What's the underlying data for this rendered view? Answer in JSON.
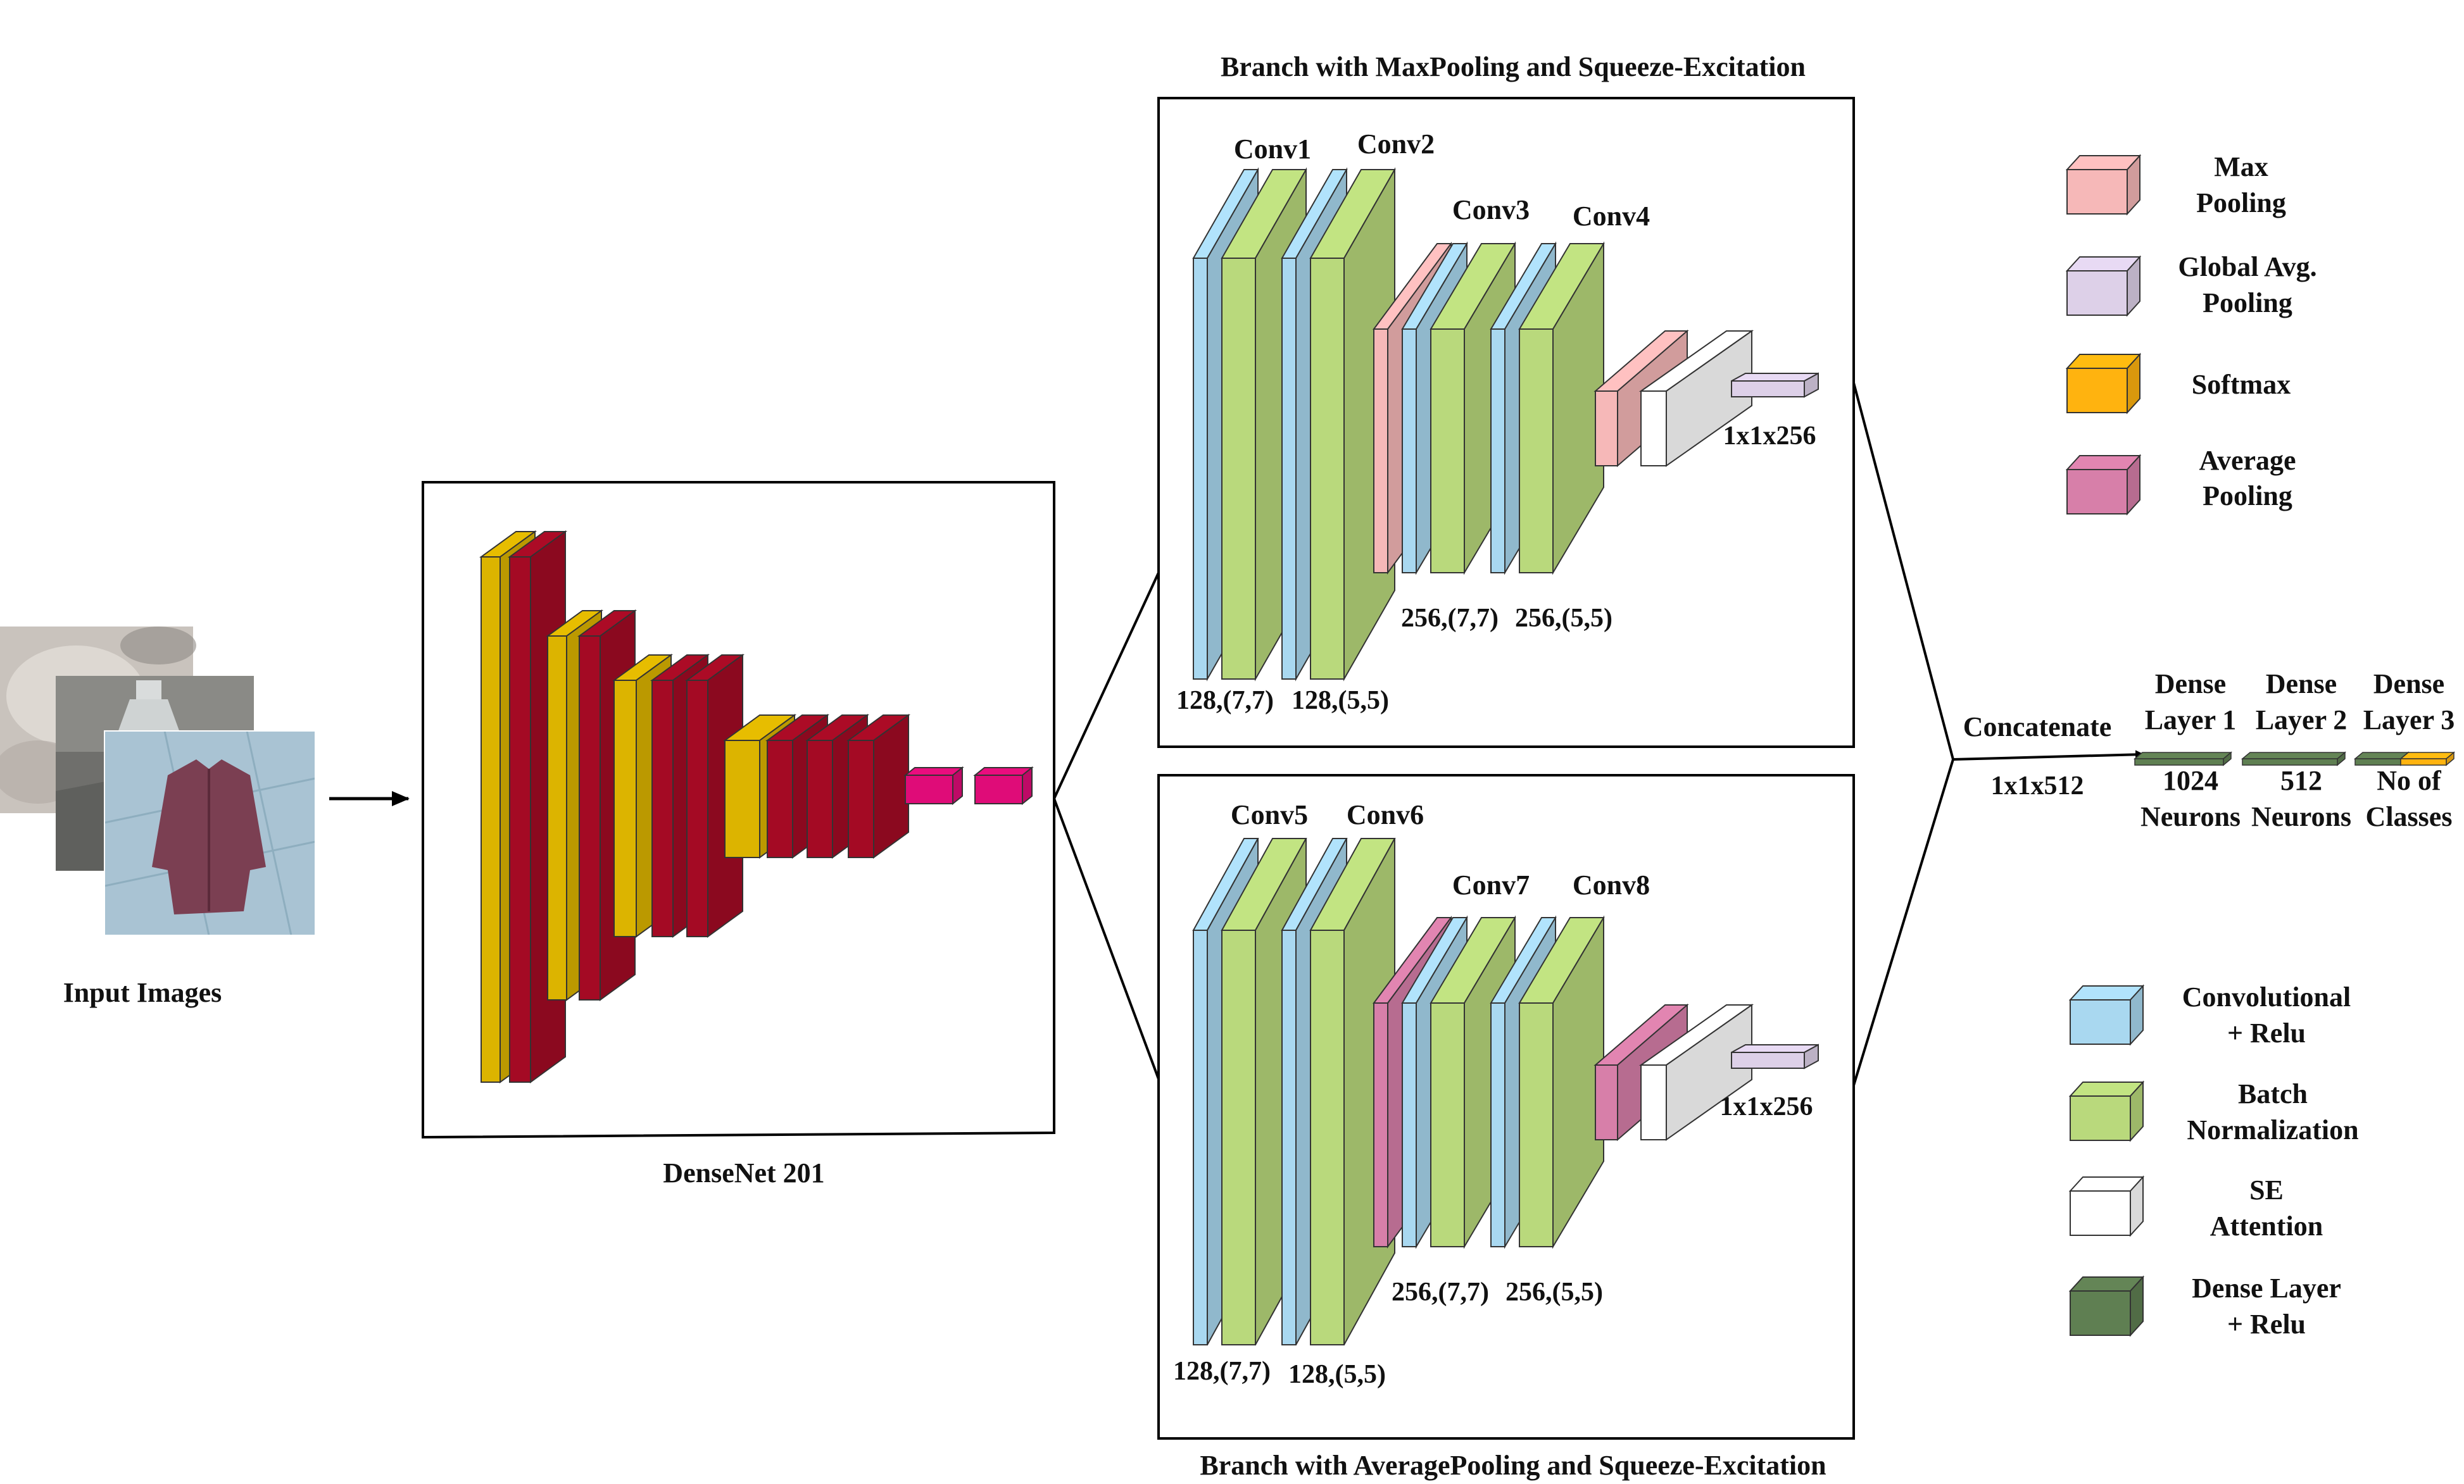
{
  "colors": {
    "conv_relu": "#a9d8f0",
    "batch_norm": "#b9d97c",
    "se_attention": "#ffffff",
    "dense_relu": "#5f7f52",
    "max_pooling": "#f6b8b8",
    "global_avg_pooling": "#ddd0e8",
    "softmax": "#ffb30f",
    "average_pooling": "#d77fa9",
    "densenet_yellow": "#dcb400",
    "densenet_red": "#a40a24",
    "densenet_magenta": "#df0c78"
  },
  "input": {
    "label": "Input Images",
    "images": [
      "blurred-indoor-photo",
      "bottle-photo",
      "jacket-photo"
    ]
  },
  "densenet": {
    "label": "DenseNet 201"
  },
  "branch_max": {
    "title": "Branch with MaxPooling and Squeeze-Excitation",
    "conv1": "Conv1",
    "conv2": "Conv2",
    "conv3": "Conv3",
    "conv4": "Conv4",
    "dims_a": "128,(7,7)",
    "dims_b": "128,(5,5)",
    "dims_c": "256,(7,7)",
    "dims_d": "256,(5,5)",
    "out": "1x1x256"
  },
  "branch_avg": {
    "title": "Branch with AveragePooling and Squeeze-Excitation",
    "conv5": "Conv5",
    "conv6": "Conv6",
    "conv7": "Conv7",
    "conv8": "Conv8",
    "dims_a": "128,(7,7)",
    "dims_b": "128,(5,5)",
    "dims_c": "256,(7,7)",
    "dims_d": "256,(5,5)",
    "out": "1x1x256"
  },
  "concat": {
    "label": "Concatenate",
    "dims": "1x1x512"
  },
  "dense_layers": [
    {
      "name_l1": "Dense",
      "name_l2": "Layer 1",
      "detail_l1": "1024",
      "detail_l2": "Neurons"
    },
    {
      "name_l1": "Dense",
      "name_l2": "Layer 2",
      "detail_l1": "512",
      "detail_l2": "Neurons"
    },
    {
      "name_l1": "Dense",
      "name_l2": "Layer 3",
      "detail_l1": "No of",
      "detail_l2": "Classes"
    }
  ],
  "legend_top": [
    {
      "l1": "Max",
      "l2": "Pooling",
      "color_key": "max_pooling"
    },
    {
      "l1": "Global Avg.",
      "l2": "Pooling",
      "color_key": "global_avg_pooling"
    },
    {
      "l1": "Softmax",
      "l2": "",
      "color_key": "softmax"
    },
    {
      "l1": "Average",
      "l2": "Pooling",
      "color_key": "average_pooling"
    }
  ],
  "legend_bottom": [
    {
      "l1": "Convolutional",
      "l2": "+ Relu",
      "color_key": "conv_relu"
    },
    {
      "l1": "Batch",
      "l2": "Normalization",
      "color_key": "batch_norm"
    },
    {
      "l1": "SE",
      "l2": "Attention",
      "color_key": "se_attention"
    },
    {
      "l1": "Dense Layer",
      "l2": "+ Relu",
      "color_key": "dense_relu"
    }
  ]
}
